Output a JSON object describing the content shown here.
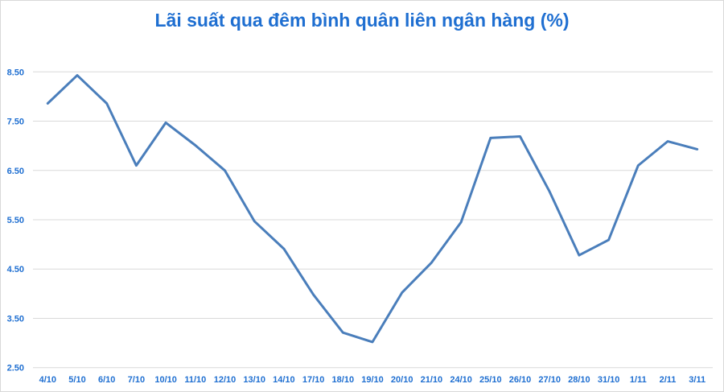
{
  "chart_data": {
    "type": "line",
    "title": "Lãi suất qua đêm bình quân liên ngân hàng (%)",
    "xlabel": "",
    "ylabel": "",
    "categories": [
      "4/10",
      "5/10",
      "6/10",
      "7/10",
      "10/10",
      "11/10",
      "12/10",
      "13/10",
      "14/10",
      "17/10",
      "18/10",
      "19/10",
      "20/10",
      "21/10",
      "24/10",
      "25/10",
      "26/10",
      "27/10",
      "28/10",
      "31/10",
      "1/11",
      "2/11",
      "3/11"
    ],
    "series": [
      {
        "values": [
          7.86,
          8.43,
          7.86,
          6.6,
          7.47,
          7.01,
          6.5,
          5.47,
          4.91,
          3.98,
          3.21,
          3.02,
          4.02,
          4.63,
          5.45,
          7.16,
          7.19,
          6.07,
          4.78,
          5.09,
          6.6,
          7.09,
          6.93
        ]
      }
    ],
    "ylim": [
      2.5,
      8.5
    ],
    "yticks": [
      "2.50",
      "3.50",
      "4.50",
      "5.50",
      "6.50",
      "7.50",
      "8.50"
    ],
    "grid": true,
    "legend": "none",
    "colors": {
      "line": "#4a7ebb",
      "title": "#1f6fd1",
      "ticks": "#1f6fd1",
      "grid": "#d9d9d9"
    }
  }
}
